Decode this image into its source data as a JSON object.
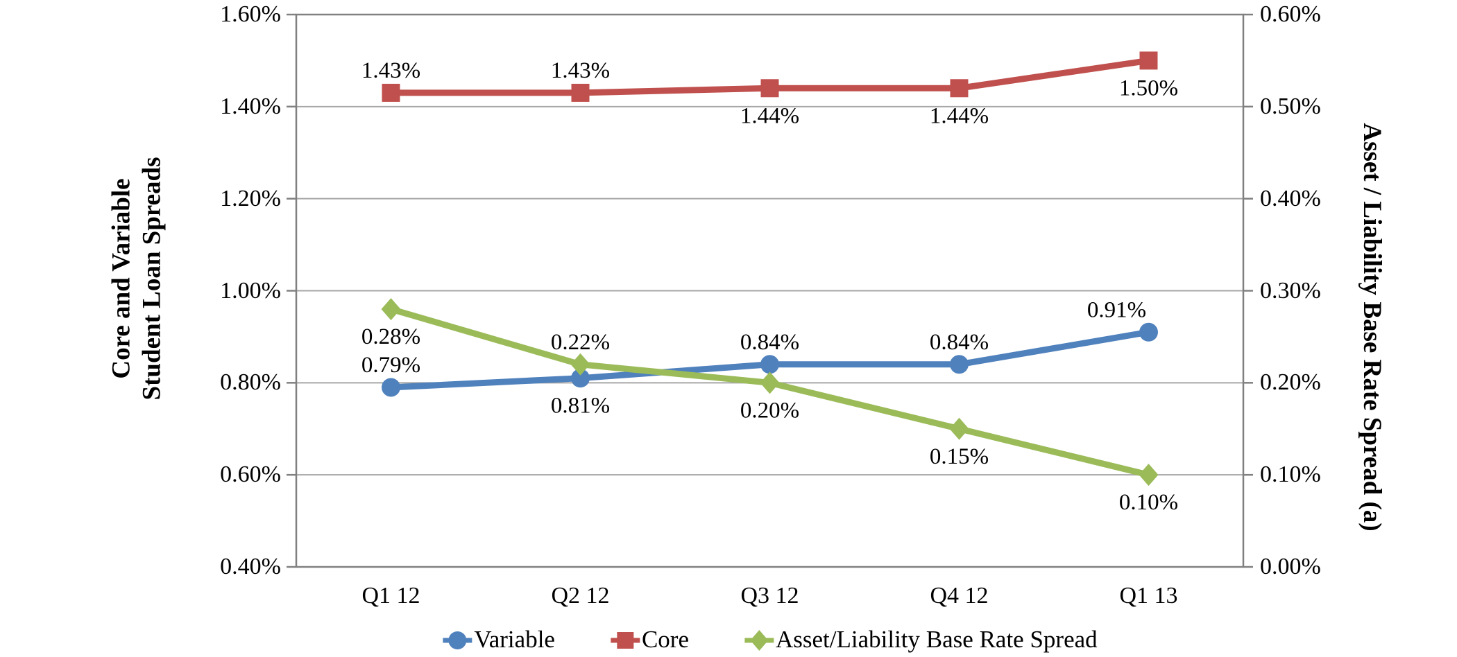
{
  "chart_data": {
    "type": "line",
    "categories": [
      "Q1 12",
      "Q2 12",
      "Q3 12",
      "Q4 12",
      "Q1 13"
    ],
    "series": [
      {
        "name": "Variable",
        "axis": "left",
        "color": "#4F81BD",
        "marker": "circle",
        "values": [
          0.79,
          0.81,
          0.84,
          0.84,
          0.91
        ],
        "data_labels": [
          "0.79%",
          "0.81%",
          "0.84%",
          "0.84%",
          "0.91%"
        ],
        "label_positions": [
          "above",
          "below",
          "above",
          "above",
          "above-left"
        ]
      },
      {
        "name": "Core",
        "axis": "left",
        "color": "#C0504D",
        "marker": "square",
        "values": [
          1.43,
          1.43,
          1.44,
          1.44,
          1.5
        ],
        "data_labels": [
          "1.43%",
          "1.43%",
          "1.44%",
          "1.44%",
          "1.50%"
        ],
        "label_positions": [
          "above",
          "above",
          "below",
          "below",
          "below"
        ]
      },
      {
        "name": "Asset/Liability Base Rate Spread",
        "axis": "right",
        "color": "#9BBB59",
        "marker": "diamond",
        "values": [
          0.28,
          0.22,
          0.2,
          0.15,
          0.1
        ],
        "data_labels": [
          "0.28%",
          "0.22%",
          "0.20%",
          "0.15%",
          "0.10%"
        ],
        "label_positions": [
          "below",
          "above",
          "below",
          "below",
          "below"
        ]
      }
    ],
    "left_axis": {
      "title_lines": [
        "Core and Variable",
        "Student Loan Spreads"
      ],
      "ticks": [
        "1.60%",
        "1.40%",
        "1.20%",
        "1.00%",
        "0.80%",
        "0.60%",
        "0.40%"
      ],
      "min": 0.4,
      "max": 1.6
    },
    "right_axis": {
      "title": "Asset / Liability Base Rate Spread (a)",
      "ticks": [
        "0.60%",
        "0.50%",
        "0.40%",
        "0.30%",
        "0.20%",
        "0.10%",
        "0.00%"
      ],
      "min": 0.0,
      "max": 0.6
    },
    "legend": [
      {
        "label": "Variable",
        "color": "#4F81BD",
        "marker": "circle"
      },
      {
        "label": "Core",
        "color": "#C0504D",
        "marker": "square"
      },
      {
        "label": "Asset/Liability Base Rate Spread",
        "color": "#9BBB59",
        "marker": "diamond"
      }
    ],
    "grid": true,
    "legend_position": "bottom",
    "colors": {
      "gridline": "#A6A6A6",
      "plot_border": "#808080",
      "text": "#000000"
    }
  }
}
